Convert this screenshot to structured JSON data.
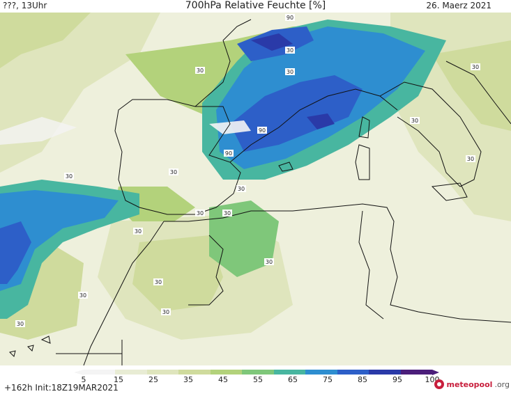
{
  "header": {
    "left": "???, 13Uhr",
    "title": "700hPa Relative Feuchte [%]",
    "date": "26. Maerz 2021"
  },
  "footer": {
    "init": "+162h  Init:18Z19MAR2021",
    "brand_name": "meteopool",
    "brand_tld": ".org"
  },
  "colorbar": {
    "ticks": [
      "5",
      "15",
      "25",
      "35",
      "45",
      "55",
      "65",
      "75",
      "85",
      "95",
      "100"
    ],
    "colors": [
      "#f4f4f4",
      "#e8ecd4",
      "#dfe5bd",
      "#cfdb9d",
      "#b3d27b",
      "#7fc77a",
      "#48b6a0",
      "#2e8ed0",
      "#2d5fc8",
      "#2a3aa8",
      "#4b1e7a"
    ]
  },
  "map": {
    "contour_labels": [
      "90",
      "30"
    ]
  }
}
